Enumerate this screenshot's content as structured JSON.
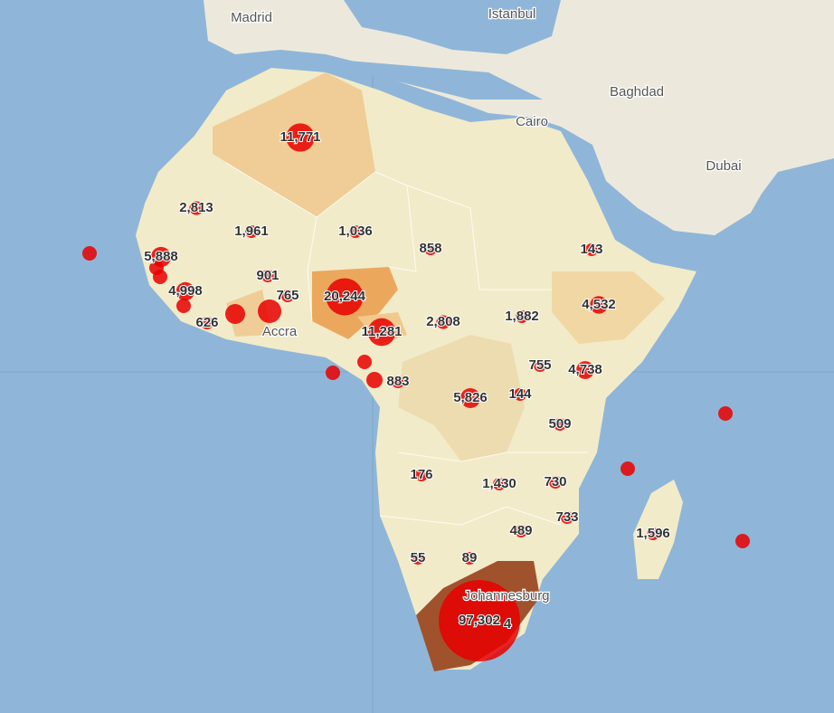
{
  "cities": [
    "Madrid",
    "Istanbul",
    "Baghdad",
    "Cairo",
    "Dubai",
    "Accra",
    "Johannesburg"
  ],
  "markers": [
    {
      "label": "11,771",
      "value": 11771
    },
    {
      "label": "2,813",
      "value": 2813
    },
    {
      "label": "1,961",
      "value": 1961
    },
    {
      "label": "1,036",
      "value": 1036
    },
    {
      "label": "858",
      "value": 858
    },
    {
      "label": "143",
      "value": 143
    },
    {
      "label": "5,888",
      "value": 5888
    },
    {
      "label": "901",
      "value": 901
    },
    {
      "label": "4,998",
      "value": 4998
    },
    {
      "label": "765",
      "value": 765
    },
    {
      "label": "20,244",
      "value": 20244
    },
    {
      "label": "4,532",
      "value": 4532
    },
    {
      "label": "626",
      "value": 626
    },
    {
      "label": "11,281",
      "value": 11281
    },
    {
      "label": "2,808",
      "value": 2808
    },
    {
      "label": "1,882",
      "value": 1882
    },
    {
      "label": "755",
      "value": 755
    },
    {
      "label": "4,738",
      "value": 4738
    },
    {
      "label": "883",
      "value": 883
    },
    {
      "label": "5,826",
      "value": 5826
    },
    {
      "label": "144",
      "value": 144
    },
    {
      "label": "509",
      "value": 509
    },
    {
      "label": "176",
      "value": 176
    },
    {
      "label": "1,430",
      "value": 1430
    },
    {
      "label": "730",
      "value": 730
    },
    {
      "label": "733",
      "value": 733
    },
    {
      "label": "489",
      "value": 489
    },
    {
      "label": "1,596",
      "value": 1596
    },
    {
      "label": "55",
      "value": 55
    },
    {
      "label": "89",
      "value": 89
    },
    {
      "label": "97,302",
      "value": 97302
    },
    {
      "label": "4",
      "value": 4
    }
  ]
}
